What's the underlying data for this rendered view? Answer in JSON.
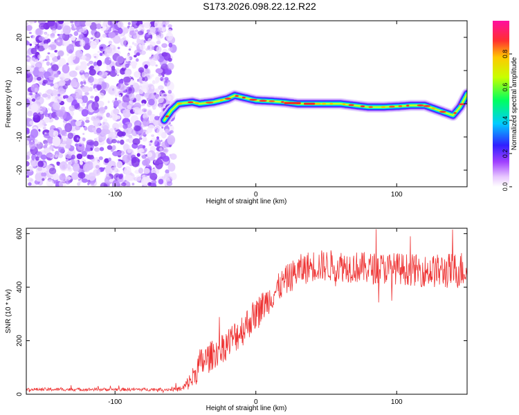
{
  "title": "S173.2026.098.22.12.R22",
  "chart_data": [
    {
      "type": "heatmap",
      "xlabel": "Height of straight line (km)",
      "ylabel": "Frequency (Hz)",
      "xlim": [
        -163,
        150
      ],
      "ylim": [
        -25,
        25
      ],
      "xticks": [
        -100,
        0,
        100
      ],
      "xtick_labels": [
        "-100",
        "0",
        "100"
      ],
      "yticks": [
        -20,
        -10,
        0,
        10,
        20
      ],
      "ytick_labels": [
        "-20",
        "-10",
        "0",
        "10",
        "20"
      ],
      "noise_region_x": [
        -163,
        -60
      ],
      "signal_track": {
        "x": [
          -65,
          -60,
          -55,
          -45,
          -40,
          -30,
          -20,
          -15,
          -10,
          0,
          10,
          20,
          30,
          40,
          50,
          60,
          70,
          80,
          90,
          100,
          110,
          120,
          130,
          140,
          145,
          150
        ],
        "freq": [
          -5,
          -2,
          0,
          0.5,
          0,
          0.5,
          1.5,
          2.5,
          2,
          1,
          0.8,
          0.5,
          0,
          0,
          0,
          0,
          -0.5,
          -1,
          -1,
          -0.8,
          -0.5,
          -0.5,
          -2,
          -3.5,
          -1,
          3
        ]
      },
      "colorbar": {
        "label": "Normalized spectral amplitude",
        "range": [
          0.0,
          1.0
        ],
        "ticks": [
          0.0,
          0.2,
          0.4,
          0.6,
          0.8
        ],
        "tick_labels": [
          "0.0",
          "0.2",
          "0.4",
          "0.6",
          "0.8"
        ]
      }
    },
    {
      "type": "line",
      "xlabel": "Height of straight line (km)",
      "ylabel": "SNR (10 * v/v)",
      "xlim": [
        -163,
        150
      ],
      "ylim": [
        0,
        620
      ],
      "xticks": [
        -100,
        0,
        100
      ],
      "xtick_labels": [
        "-100",
        "0",
        "100"
      ],
      "yticks": [
        0,
        200,
        400,
        600
      ],
      "ytick_labels": [
        "0",
        "200",
        "400",
        "600"
      ],
      "color": "#ee3333",
      "envelope": {
        "x": [
          -163,
          -60,
          -52,
          -45,
          -40,
          -35,
          -30,
          -20,
          -10,
          0,
          10,
          20,
          30,
          40,
          60,
          80,
          100,
          120,
          140,
          150
        ],
        "mean": [
          18,
          18,
          20,
          60,
          110,
          130,
          150,
          190,
          240,
          300,
          360,
          420,
          460,
          480,
          480,
          470,
          470,
          460,
          460,
          470
        ],
        "noise_amp": [
          6,
          6,
          12,
          40,
          60,
          60,
          55,
          60,
          65,
          60,
          55,
          55,
          60,
          60,
          60,
          60,
          60,
          60,
          70,
          70
        ]
      }
    }
  ]
}
